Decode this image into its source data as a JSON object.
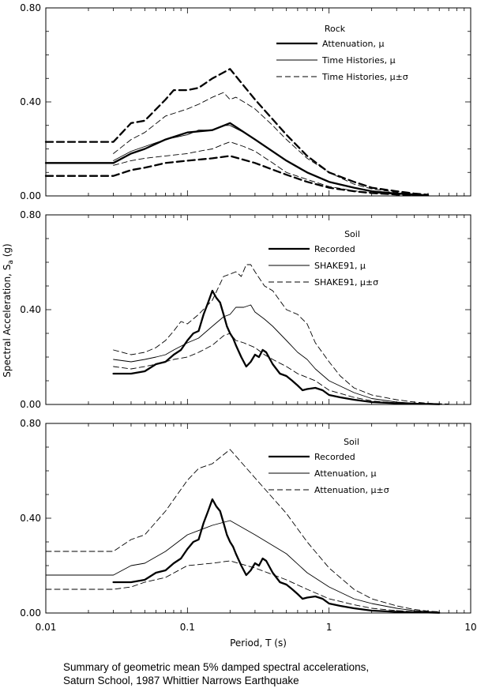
{
  "caption": {
    "line1": "Summary of geometric mean 5% damped spectral accelerations,",
    "line2": "Saturn School, 1987 Whittier Narrows Earthquake"
  },
  "chart_data": [
    {
      "type": "line",
      "xscale": "log",
      "xlim": [
        0.01,
        10
      ],
      "ylim": [
        0,
        0.8
      ],
      "xlabel": "Period, T (s)",
      "ylabel": "Spectral Acceleration, S_a (g)",
      "yticks": [
        "0.00",
        "0.40",
        "0.80"
      ],
      "xticks": [
        "0.01",
        "0.1",
        "1",
        "10"
      ],
      "legend_title": "Rock",
      "series": [
        {
          "name": "Attenuation, μ",
          "style": "thick-solid",
          "legend": true,
          "x": [
            0.01,
            0.03,
            0.04,
            0.05,
            0.07,
            0.1,
            0.15,
            0.2,
            0.3,
            0.5,
            0.7,
            1,
            1.5,
            2,
            3,
            4,
            5
          ],
          "y": [
            0.14,
            0.14,
            0.18,
            0.2,
            0.24,
            0.27,
            0.28,
            0.31,
            0.24,
            0.15,
            0.1,
            0.06,
            0.035,
            0.02,
            0.01,
            0.005,
            0.003
          ]
        },
        {
          "name": "Time Histories, μ",
          "style": "thin-solid",
          "legend": true,
          "x": [
            0.03,
            0.04,
            0.05,
            0.07,
            0.1,
            0.12,
            0.15,
            0.18,
            0.2,
            0.25,
            0.3,
            0.5,
            0.7,
            1,
            1.5,
            2,
            3,
            4,
            5
          ],
          "y": [
            0.15,
            0.19,
            0.21,
            0.24,
            0.26,
            0.28,
            0.28,
            0.3,
            0.3,
            0.27,
            0.24,
            0.15,
            0.1,
            0.06,
            0.035,
            0.02,
            0.01,
            0.006,
            0.003
          ]
        },
        {
          "name": "Time Histories, μ±σ",
          "style": "thin-dash",
          "legend": true,
          "x": [
            0.03,
            0.04,
            0.05,
            0.07,
            0.1,
            0.12,
            0.15,
            0.18,
            0.2,
            0.22,
            0.25,
            0.3,
            0.4,
            0.5,
            0.7,
            1,
            1.5,
            2,
            3,
            4,
            5
          ],
          "y": [
            0.18,
            0.24,
            0.27,
            0.34,
            0.37,
            0.39,
            0.42,
            0.44,
            0.41,
            0.42,
            0.4,
            0.37,
            0.3,
            0.24,
            0.16,
            0.1,
            0.05,
            0.03,
            0.015,
            0.008,
            0.004
          ]
        },
        {
          "name": "",
          "style": "thin-dash",
          "legend": false,
          "x": [
            0.03,
            0.04,
            0.05,
            0.07,
            0.1,
            0.12,
            0.15,
            0.18,
            0.2,
            0.25,
            0.3,
            0.4,
            0.5,
            0.7,
            1,
            1.5,
            2,
            3,
            4,
            5
          ],
          "y": [
            0.13,
            0.15,
            0.16,
            0.17,
            0.18,
            0.19,
            0.2,
            0.22,
            0.23,
            0.21,
            0.19,
            0.14,
            0.1,
            0.07,
            0.04,
            0.022,
            0.013,
            0.007,
            0.004,
            0.002
          ]
        },
        {
          "name": "",
          "style": "thick-dash",
          "legend": false,
          "x": [
            0.01,
            0.03,
            0.04,
            0.05,
            0.07,
            0.08,
            0.1,
            0.12,
            0.15,
            0.2,
            0.3,
            0.5,
            0.7,
            1,
            1.5,
            2,
            3,
            4,
            5
          ],
          "y": [
            0.23,
            0.23,
            0.31,
            0.32,
            0.41,
            0.45,
            0.45,
            0.46,
            0.5,
            0.54,
            0.41,
            0.26,
            0.17,
            0.1,
            0.06,
            0.035,
            0.02,
            0.01,
            0.005
          ]
        },
        {
          "name": "",
          "style": "thick-dash",
          "legend": false,
          "x": [
            0.01,
            0.03,
            0.04,
            0.05,
            0.07,
            0.1,
            0.15,
            0.2,
            0.3,
            0.5,
            0.7,
            1,
            1.5,
            2,
            3,
            4,
            5
          ],
          "y": [
            0.085,
            0.085,
            0.11,
            0.12,
            0.14,
            0.15,
            0.16,
            0.17,
            0.14,
            0.09,
            0.06,
            0.035,
            0.02,
            0.012,
            0.006,
            0.003,
            0.002
          ]
        }
      ]
    },
    {
      "type": "line",
      "xscale": "log",
      "xlim": [
        0.01,
        10
      ],
      "ylim": [
        0,
        0.8
      ],
      "yticks": [
        "0.00",
        "0.40",
        "0.80"
      ],
      "legend_title": "Soil",
      "series": [
        {
          "name": "Recorded",
          "style": "thick-solid",
          "legend": true,
          "x": [
            0.03,
            0.04,
            0.05,
            0.06,
            0.07,
            0.08,
            0.09,
            0.1,
            0.11,
            0.12,
            0.13,
            0.14,
            0.15,
            0.16,
            0.17,
            0.18,
            0.19,
            0.2,
            0.21,
            0.22,
            0.24,
            0.26,
            0.28,
            0.3,
            0.32,
            0.34,
            0.36,
            0.4,
            0.45,
            0.5,
            0.55,
            0.6,
            0.65,
            0.7,
            0.8,
            0.9,
            1,
            1.2,
            1.5,
            2,
            3,
            4,
            5,
            6
          ],
          "y": [
            0.13,
            0.13,
            0.14,
            0.17,
            0.18,
            0.21,
            0.23,
            0.27,
            0.3,
            0.31,
            0.38,
            0.43,
            0.48,
            0.45,
            0.43,
            0.38,
            0.33,
            0.3,
            0.28,
            0.25,
            0.2,
            0.16,
            0.18,
            0.21,
            0.2,
            0.23,
            0.22,
            0.17,
            0.13,
            0.12,
            0.1,
            0.08,
            0.06,
            0.065,
            0.07,
            0.06,
            0.04,
            0.03,
            0.02,
            0.01,
            0.005,
            0.003,
            0.002,
            0.001
          ]
        },
        {
          "name": "SHAKE91, μ",
          "style": "thin-solid",
          "legend": true,
          "x": [
            0.03,
            0.04,
            0.05,
            0.06,
            0.07,
            0.08,
            0.1,
            0.12,
            0.15,
            0.18,
            0.2,
            0.22,
            0.25,
            0.28,
            0.3,
            0.35,
            0.4,
            0.5,
            0.6,
            0.7,
            0.8,
            1,
            1.5,
            2,
            3,
            4,
            5,
            6
          ],
          "y": [
            0.19,
            0.18,
            0.19,
            0.2,
            0.21,
            0.23,
            0.26,
            0.28,
            0.33,
            0.37,
            0.38,
            0.41,
            0.41,
            0.42,
            0.39,
            0.36,
            0.33,
            0.27,
            0.22,
            0.19,
            0.15,
            0.1,
            0.05,
            0.025,
            0.01,
            0.005,
            0.003,
            0.002
          ]
        },
        {
          "name": "SHAKE91, μ±σ",
          "style": "thin-dash",
          "legend": true,
          "x": [
            0.03,
            0.04,
            0.05,
            0.06,
            0.07,
            0.08,
            0.09,
            0.1,
            0.12,
            0.15,
            0.18,
            0.2,
            0.22,
            0.24,
            0.26,
            0.28,
            0.3,
            0.35,
            0.4,
            0.5,
            0.6,
            0.7,
            0.8,
            1,
            1.2,
            1.5,
            2,
            3,
            4,
            5,
            6,
            7
          ],
          "y": [
            0.23,
            0.21,
            0.22,
            0.24,
            0.27,
            0.31,
            0.35,
            0.34,
            0.38,
            0.44,
            0.54,
            0.55,
            0.56,
            0.54,
            0.59,
            0.59,
            0.56,
            0.5,
            0.48,
            0.4,
            0.38,
            0.34,
            0.26,
            0.18,
            0.12,
            0.07,
            0.04,
            0.02,
            0.01,
            0.005,
            0.003,
            0.002
          ]
        },
        {
          "name": "",
          "style": "thin-dash",
          "legend": false,
          "x": [
            0.03,
            0.04,
            0.05,
            0.06,
            0.07,
            0.08,
            0.1,
            0.12,
            0.15,
            0.18,
            0.2,
            0.22,
            0.25,
            0.3,
            0.35,
            0.4,
            0.5,
            0.6,
            0.8,
            1,
            1.5,
            2,
            3,
            4,
            5
          ],
          "y": [
            0.16,
            0.15,
            0.16,
            0.17,
            0.18,
            0.19,
            0.2,
            0.22,
            0.25,
            0.29,
            0.3,
            0.27,
            0.26,
            0.24,
            0.21,
            0.19,
            0.16,
            0.13,
            0.1,
            0.06,
            0.03,
            0.015,
            0.006,
            0.003,
            0.002
          ]
        }
      ]
    },
    {
      "type": "line",
      "xscale": "log",
      "xlim": [
        0.01,
        10
      ],
      "ylim": [
        0,
        0.8
      ],
      "yticks": [
        "0.00",
        "0.40",
        "0.80"
      ],
      "legend_title": "Soil",
      "series": [
        {
          "name": "Recorded",
          "style": "thick-solid",
          "legend": true,
          "x": [
            0.03,
            0.04,
            0.05,
            0.06,
            0.07,
            0.08,
            0.09,
            0.1,
            0.11,
            0.12,
            0.13,
            0.14,
            0.15,
            0.16,
            0.17,
            0.18,
            0.19,
            0.2,
            0.21,
            0.22,
            0.24,
            0.26,
            0.28,
            0.3,
            0.32,
            0.34,
            0.36,
            0.4,
            0.45,
            0.5,
            0.55,
            0.6,
            0.65,
            0.7,
            0.8,
            0.9,
            1,
            1.2,
            1.5,
            2,
            3,
            4,
            5,
            6
          ],
          "y": [
            0.13,
            0.13,
            0.14,
            0.17,
            0.18,
            0.21,
            0.23,
            0.27,
            0.3,
            0.31,
            0.38,
            0.43,
            0.48,
            0.45,
            0.43,
            0.38,
            0.33,
            0.3,
            0.28,
            0.25,
            0.2,
            0.16,
            0.18,
            0.21,
            0.2,
            0.23,
            0.22,
            0.17,
            0.13,
            0.12,
            0.1,
            0.08,
            0.06,
            0.065,
            0.07,
            0.06,
            0.04,
            0.03,
            0.02,
            0.01,
            0.005,
            0.003,
            0.002,
            0.001
          ]
        },
        {
          "name": "Attenuation, μ",
          "style": "thin-solid",
          "legend": true,
          "x": [
            0.01,
            0.03,
            0.04,
            0.05,
            0.07,
            0.1,
            0.15,
            0.2,
            0.3,
            0.5,
            0.7,
            1,
            1.5,
            2,
            3,
            4,
            5,
            6
          ],
          "y": [
            0.16,
            0.16,
            0.2,
            0.21,
            0.26,
            0.33,
            0.37,
            0.39,
            0.33,
            0.25,
            0.17,
            0.11,
            0.06,
            0.04,
            0.02,
            0.01,
            0.006,
            0.004
          ]
        },
        {
          "name": "Attenuation, μ±σ",
          "style": "thin-dash",
          "legend": true,
          "x": [
            0.01,
            0.03,
            0.04,
            0.05,
            0.07,
            0.1,
            0.12,
            0.15,
            0.2,
            0.3,
            0.5,
            0.7,
            1,
            1.5,
            2,
            3,
            4,
            5,
            6
          ],
          "y": [
            0.26,
            0.26,
            0.31,
            0.33,
            0.43,
            0.56,
            0.61,
            0.63,
            0.69,
            0.57,
            0.42,
            0.3,
            0.19,
            0.1,
            0.06,
            0.03,
            0.015,
            0.008,
            0.005
          ]
        },
        {
          "name": "",
          "style": "thin-dash",
          "legend": false,
          "x": [
            0.01,
            0.03,
            0.04,
            0.05,
            0.07,
            0.1,
            0.15,
            0.2,
            0.3,
            0.5,
            0.7,
            1,
            1.5,
            2,
            3,
            4,
            5
          ],
          "y": [
            0.1,
            0.1,
            0.11,
            0.13,
            0.15,
            0.2,
            0.21,
            0.22,
            0.19,
            0.14,
            0.1,
            0.06,
            0.035,
            0.02,
            0.01,
            0.006,
            0.004
          ]
        }
      ]
    }
  ]
}
